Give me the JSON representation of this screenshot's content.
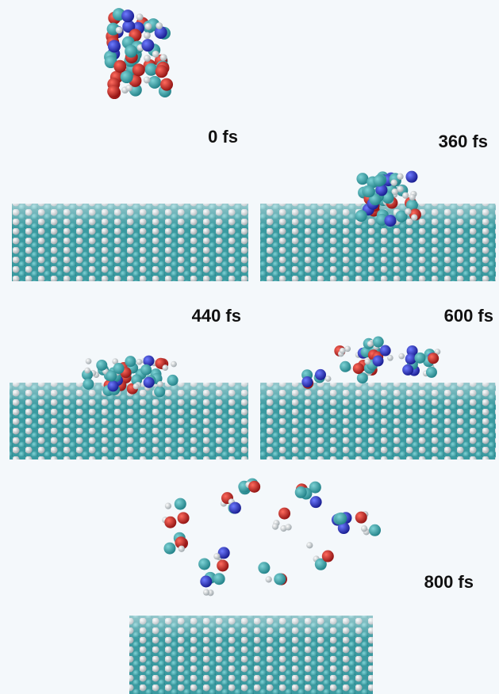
{
  "panels": [
    {
      "label": "0 fs"
    },
    {
      "label": "360 fs"
    },
    {
      "label": "440 fs"
    },
    {
      "label": "600 fs"
    },
    {
      "label": "800 fs"
    }
  ]
}
